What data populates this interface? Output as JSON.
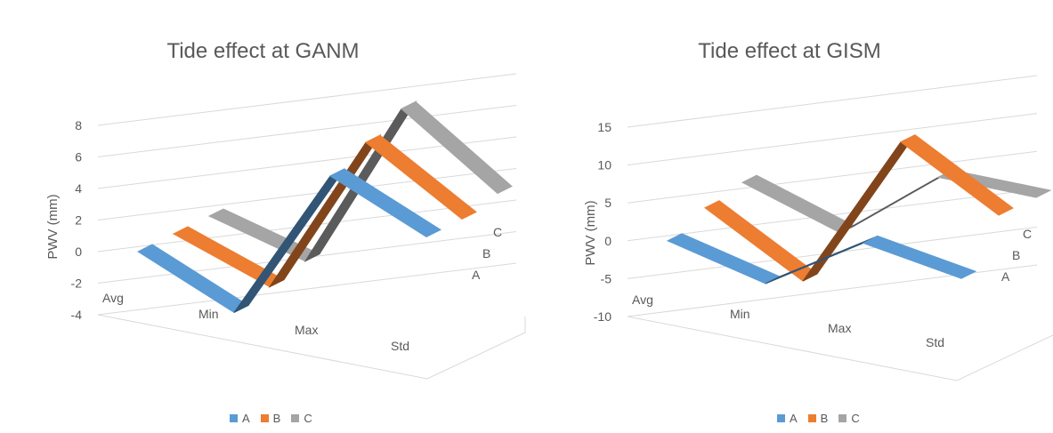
{
  "chart_data": [
    {
      "type": "line",
      "title": "Tide effect at GANM",
      "ylabel": "PWV (mm)",
      "xlabel": "",
      "categories": [
        "Avg",
        "Min",
        "Max",
        "Std"
      ],
      "depth_labels": [
        "A",
        "B",
        "C"
      ],
      "ylim": [
        -4,
        8
      ],
      "yticks": [
        -4,
        -2,
        0,
        2,
        4,
        6,
        8
      ],
      "legend": "bottom",
      "series": [
        {
          "name": "A",
          "color": "#5b9bd5",
          "values": [
            0,
            -3.5,
            5.5,
            2
          ]
        },
        {
          "name": "B",
          "color": "#ed7d31",
          "values": [
            0,
            -3,
            6.5,
            2
          ]
        },
        {
          "name": "C",
          "color": "#a5a5a5",
          "values": [
            0,
            -2.5,
            7.5,
            2.5
          ]
        }
      ]
    },
    {
      "type": "line",
      "title": "Tide effect at GISM",
      "ylabel": "PWV (mm)",
      "xlabel": "",
      "categories": [
        "Avg",
        "Min",
        "Max",
        "Std"
      ],
      "depth_labels": [
        "A",
        "B",
        "C"
      ],
      "ylim": [
        -10,
        15
      ],
      "yticks": [
        -10,
        -5,
        0,
        5,
        10,
        15
      ],
      "legend": "bottom",
      "series": [
        {
          "name": "A",
          "color": "#5b9bd5",
          "values": [
            0,
            -5,
            1,
            -3
          ]
        },
        {
          "name": "B",
          "color": "#ed7d31",
          "values": [
            2,
            -7,
            12,
            3
          ]
        },
        {
          "name": "C",
          "color": "#a5a5a5",
          "values": [
            3,
            -3,
            5,
            3
          ]
        }
      ]
    }
  ]
}
